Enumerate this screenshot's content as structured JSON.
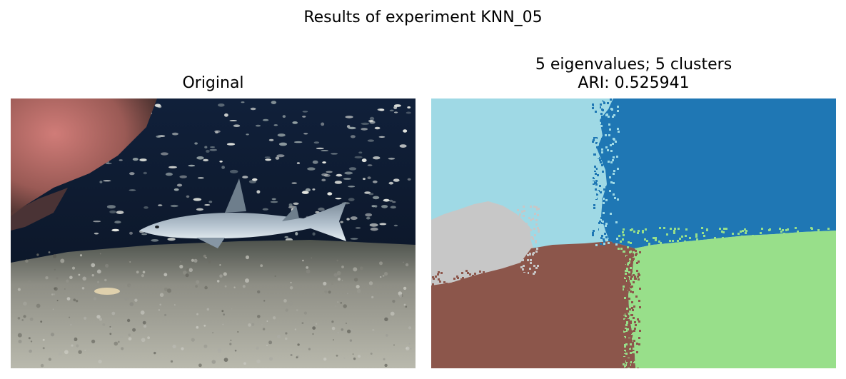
{
  "figure": {
    "suptitle": "Results of experiment KNN_05",
    "left": {
      "title": "Original"
    },
    "right": {
      "title_line1": "5 eigenvalues; 5 clusters",
      "title_line2": "ARI: 0.525941"
    }
  },
  "segmentation": {
    "clusters": [
      {
        "id": 0,
        "color": "#9fd9e5"
      },
      {
        "id": 1,
        "color": "#1f77b4"
      },
      {
        "id": 2,
        "color": "#c7c7c7"
      },
      {
        "id": 3,
        "color": "#8c564b"
      },
      {
        "id": 4,
        "color": "#98df8a"
      }
    ]
  },
  "photo_palette": {
    "water": "#0b1426",
    "rock": "#b06560",
    "rock_highlight": "#e58f8a",
    "sand": "#8e8e85",
    "sand_light": "#c4c4b8",
    "shark": "#9fb0c0",
    "fish": "#dfe3df"
  }
}
